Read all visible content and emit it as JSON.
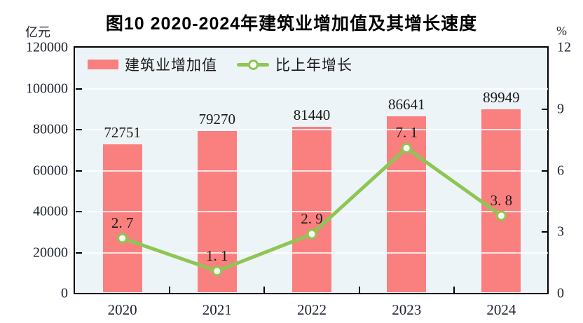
{
  "title": "图10  2020-2024年建筑业增加值及其增长速度",
  "left_axis_unit": "亿元",
  "right_axis_unit": "%",
  "legend": {
    "bar_label": "建筑业增加值",
    "line_label": "比上年增长"
  },
  "chart_data": {
    "type": "bar",
    "subtype": "combo-bar-line",
    "title": "图10  2020-2024年建筑业增加值及其增长速度",
    "categories": [
      "2020",
      "2021",
      "2022",
      "2023",
      "2024"
    ],
    "series": [
      {
        "name": "建筑业增加值",
        "type": "bar",
        "axis": "left",
        "color": "#fa7f7f",
        "values": [
          72751,
          79270,
          81440,
          86641,
          89949
        ]
      },
      {
        "name": "比上年增长",
        "type": "line",
        "axis": "right",
        "color": "#8dc653",
        "marker_fill": "#fffef4",
        "values": [
          2.7,
          1.1,
          2.9,
          7.1,
          3.8
        ],
        "point_labels": [
          "2. 7",
          "1. 1",
          "2. 9",
          "7. 1",
          "3. 8"
        ]
      }
    ],
    "left_axis": {
      "unit": "亿元",
      "min": 0,
      "max": 120000,
      "tick_step": 20000,
      "tick_labels": [
        "0",
        "20000",
        "40000",
        "60000",
        "80000",
        "100000",
        "120000"
      ]
    },
    "right_axis": {
      "unit": "%",
      "min": 0,
      "max": 12,
      "tick_step": 3,
      "tick_labels": [
        "0",
        "3",
        "6",
        "9",
        "12"
      ]
    },
    "grid": true,
    "grid_color": "#ffffff",
    "plot_bg": "#edf4f7",
    "legend_position": "top-left"
  }
}
